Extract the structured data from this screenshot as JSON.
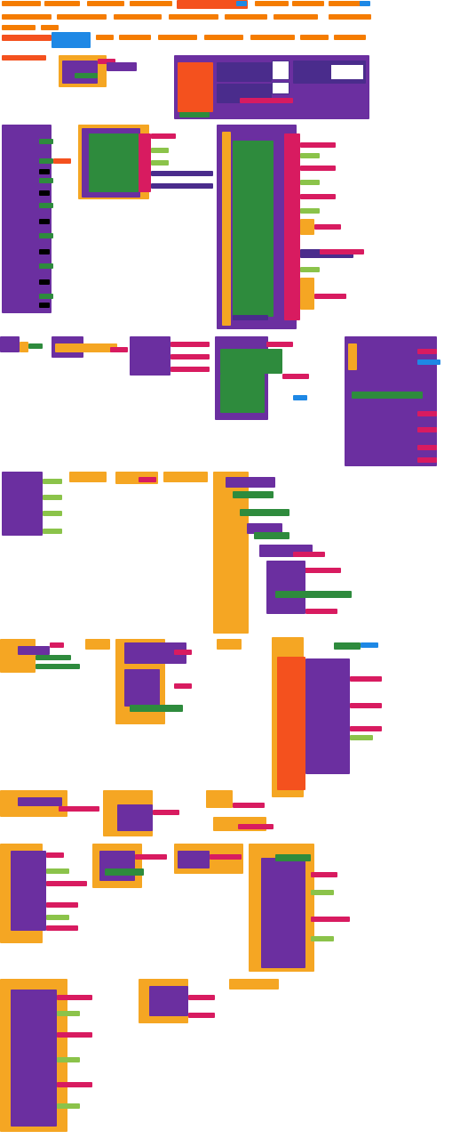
{
  "app": {
    "view": "blocks-workspace"
  },
  "colors": {
    "procedure": "#f5a623",
    "event": "#6b2fa0",
    "logic": "#2e8b3d",
    "text": "#d81b60",
    "math": "#1e88e5",
    "variable": "#f4511e",
    "list": "#8bc34a",
    "component": "#4a2c8c",
    "canvas": "#ffffff"
  },
  "workspace": {
    "block_groups_visible": true
  }
}
